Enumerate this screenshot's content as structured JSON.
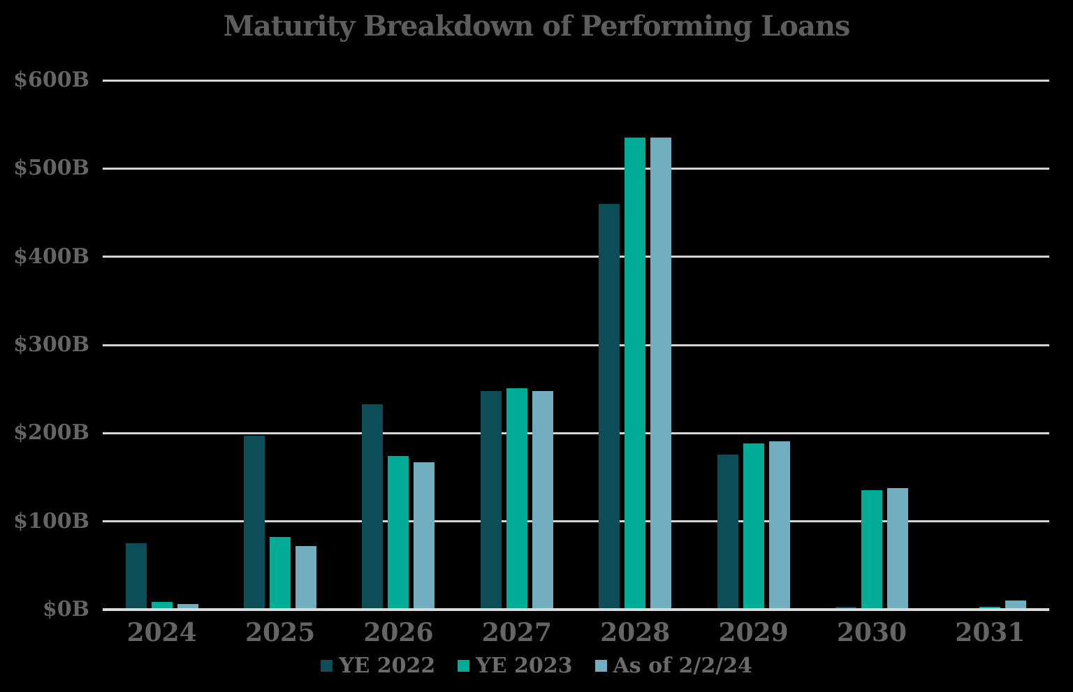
{
  "title": "Maturity Breakdown of Performing Loans",
  "colors": {
    "background": "#000000",
    "gridline": "#d5d5d5",
    "baseline": "#dcdcdc",
    "text": "#656565",
    "series": [
      "#0c4d57",
      "#00ac95",
      "#73aec0"
    ]
  },
  "chart_data": {
    "type": "bar",
    "title": "Maturity Breakdown of Performing Loans",
    "xlabel": "",
    "ylabel": "",
    "categories": [
      "2024",
      "2025",
      "2026",
      "2027",
      "2028",
      "2029",
      "2030",
      "2031"
    ],
    "series": [
      {
        "name": "YE 2022",
        "color": "#0c4d57",
        "values": [
          75,
          197,
          233,
          248,
          460,
          176,
          3,
          0
        ]
      },
      {
        "name": "YE 2023",
        "color": "#00ac95",
        "values": [
          9,
          82,
          174,
          251,
          535,
          188,
          135,
          3
        ]
      },
      {
        "name": "As of 2/2/24",
        "color": "#73aec0",
        "values": [
          6,
          72,
          167,
          248,
          535,
          191,
          138,
          10
        ]
      }
    ],
    "ylim": [
      0,
      600
    ],
    "y_tick_values": [
      0,
      100,
      200,
      300,
      400,
      500,
      600
    ],
    "y_tick_labels": [
      "$0B",
      "$100B",
      "$200B",
      "$300B",
      "$400B",
      "$500B",
      "$600B"
    ],
    "grid": "horizontal",
    "legend_position": "bottom"
  }
}
